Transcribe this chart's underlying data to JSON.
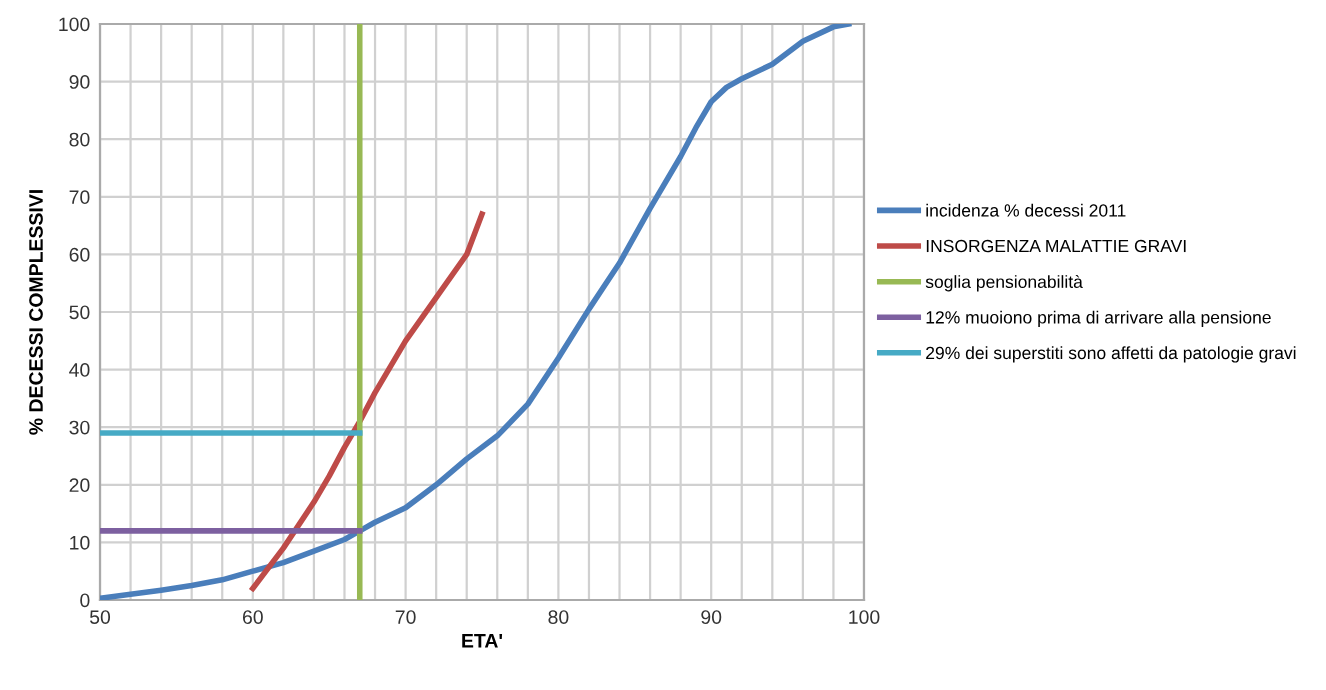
{
  "chart_data": {
    "type": "line",
    "xlabel": "ETA'",
    "ylabel": "% DECESSI COMPLESSIVI",
    "series": [
      {
        "name": "incidenza % decessi 2011",
        "color": "#4a7ebb",
        "x": [
          50,
          52,
          54,
          56,
          58,
          60,
          62,
          64,
          66,
          67,
          68,
          70,
          72,
          74,
          76,
          78,
          80,
          82,
          84,
          86,
          88,
          89,
          90,
          91,
          92,
          94,
          96,
          98,
          99
        ],
        "values": [
          0.3,
          1,
          1.7,
          2.5,
          3.5,
          5,
          6.5,
          8.5,
          10.5,
          12,
          13.5,
          16,
          20,
          24.5,
          28.5,
          34,
          42,
          50.5,
          58.5,
          68,
          77,
          82,
          86.5,
          89,
          90.5,
          93,
          97,
          99.5,
          100
        ]
      },
      {
        "name": "INSORGENZA MALATTIE GRAVI",
        "color": "#be4b48",
        "x": [
          60,
          62,
          64,
          65,
          66,
          67,
          68,
          70,
          72,
          74,
          75
        ],
        "values": [
          2,
          9,
          17,
          21.5,
          26.5,
          31,
          36,
          45,
          52.5,
          60,
          67
        ]
      },
      {
        "name": "soglia pensionabilità",
        "color": "#98b954",
        "x": [
          67,
          67
        ],
        "values": [
          0,
          100
        ]
      },
      {
        "name": "12% muoiono prima di arrivare alla pensione",
        "color": "#7d60a0",
        "x": [
          50,
          67
        ],
        "values": [
          12,
          12
        ]
      },
      {
        "name": "29% dei superstiti sono affetti da patologie gravi",
        "color": "#46aac5",
        "x": [
          50,
          67
        ],
        "values": [
          29,
          29
        ]
      }
    ],
    "xlim": [
      50,
      100
    ],
    "xticks": [
      50,
      {
        "value": 52,
        "label": null
      },
      {
        "value": 54,
        "label": null
      },
      {
        "value": 56,
        "label": null
      },
      {
        "value": 58,
        "label": null
      },
      60,
      {
        "value": 62,
        "label": null
      },
      {
        "value": 64,
        "label": null
      },
      {
        "value": 66,
        "label": null
      },
      {
        "value": 68,
        "label": null
      },
      70,
      {
        "value": 72,
        "label": null
      },
      {
        "value": 74,
        "label": null
      },
      {
        "value": 76,
        "label": null
      },
      {
        "value": 78,
        "label": null
      },
      80,
      {
        "value": 82,
        "label": null
      },
      {
        "value": 84,
        "label": null
      },
      {
        "value": 86,
        "label": null
      },
      {
        "value": 88,
        "label": null
      },
      90,
      {
        "value": 92,
        "label": null
      },
      {
        "value": 94,
        "label": null
      },
      {
        "value": 96,
        "label": null
      },
      {
        "value": 98,
        "label": null
      },
      100
    ],
    "ylim": [
      0,
      100
    ],
    "yticks": [
      0,
      10,
      20,
      30,
      40,
      50,
      60,
      70,
      80,
      90,
      100
    ],
    "grid": true,
    "legend": "right",
    "marker": "none",
    "line_style": "solid"
  }
}
